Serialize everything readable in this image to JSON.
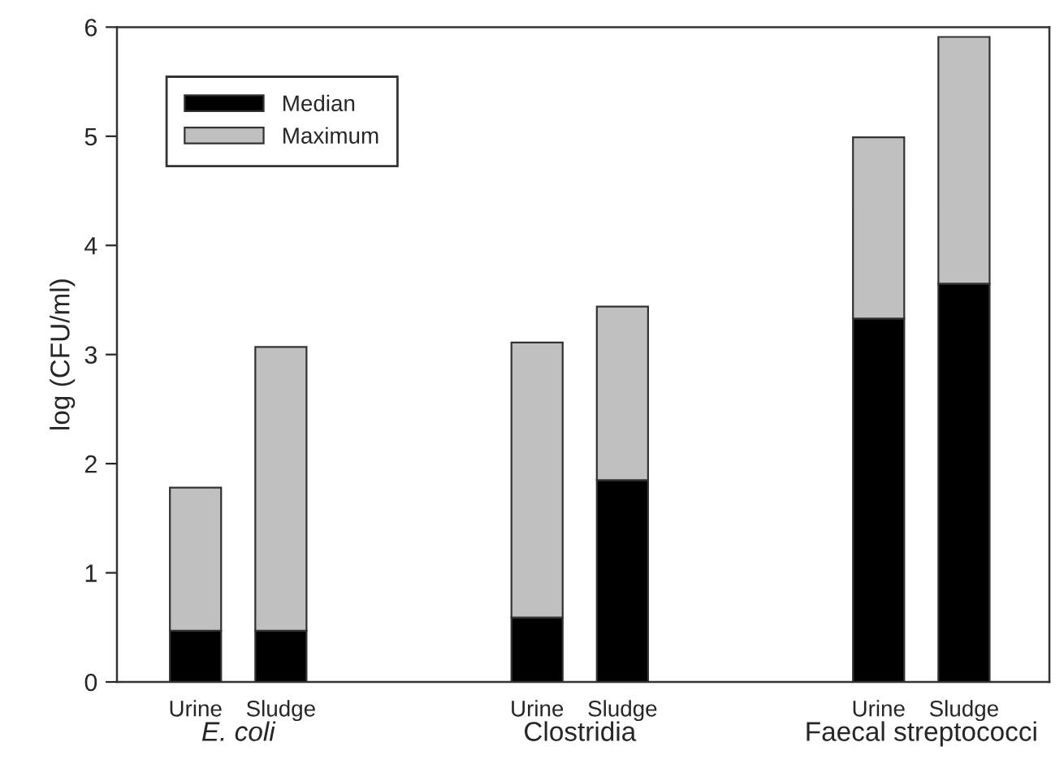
{
  "chart_data": {
    "type": "bar",
    "stacked": true,
    "ylabel": "log (CFU/ml)",
    "categories": [
      "Urine",
      "Sludge",
      null,
      null,
      "Urine",
      "Sludge",
      null,
      null,
      "Urine",
      "Sludge"
    ],
    "series": [
      {
        "name": "Median",
        "color": "#000000",
        "values": [
          0.47,
          0.47,
          null,
          null,
          0.59,
          1.85,
          null,
          null,
          3.33,
          3.65
        ]
      },
      {
        "name": "Maximum",
        "color": "#c0c0c0",
        "values": [
          1.31,
          2.6,
          null,
          null,
          2.52,
          1.59,
          null,
          null,
          1.66,
          2.26
        ]
      }
    ],
    "annotations": [
      "E. coli",
      "Clostridia",
      "Faecal streptococci"
    ],
    "ylim": [
      0,
      6
    ],
    "yticks": [
      0,
      1,
      2,
      3,
      4,
      5,
      6
    ],
    "grid": false,
    "legend": "top left"
  }
}
